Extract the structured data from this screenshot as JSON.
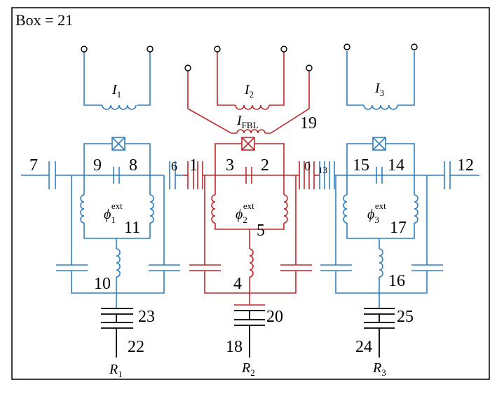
{
  "box_label": "Box = 21",
  "colors": {
    "blue": "#2e7fc4",
    "red": "#c0282a",
    "black": "#000000"
  },
  "currents": [
    {
      "sym": "I",
      "sub": "1"
    },
    {
      "sym": "I",
      "sub": "2"
    },
    {
      "sym": "I",
      "sub": "3"
    },
    {
      "sym": "I",
      "sub": "FBL"
    }
  ],
  "fluxes": [
    {
      "sym": "ϕ",
      "sub": "1",
      "sup": "ext"
    },
    {
      "sym": "ϕ",
      "sub": "2",
      "sup": "ext"
    },
    {
      "sym": "ϕ",
      "sub": "3",
      "sup": "ext"
    }
  ],
  "resistors": [
    {
      "sym": "R",
      "sub": "1"
    },
    {
      "sym": "R",
      "sub": "2"
    },
    {
      "sym": "R",
      "sub": "3"
    }
  ],
  "numbers": {
    "n0": "0",
    "n1": "1",
    "n2": "2",
    "n3": "3",
    "n4": "4",
    "n5": "5",
    "n6": "6",
    "n7": "7",
    "n8": "8",
    "n9": "9",
    "n10": "10",
    "n11": "11",
    "n12": "12",
    "n13": "13",
    "n14": "14",
    "n15": "15",
    "n16": "16",
    "n17": "17",
    "n18": "18",
    "n19": "19",
    "n20": "20",
    "n22": "22",
    "n23": "23",
    "n24": "24",
    "n25": "25"
  }
}
